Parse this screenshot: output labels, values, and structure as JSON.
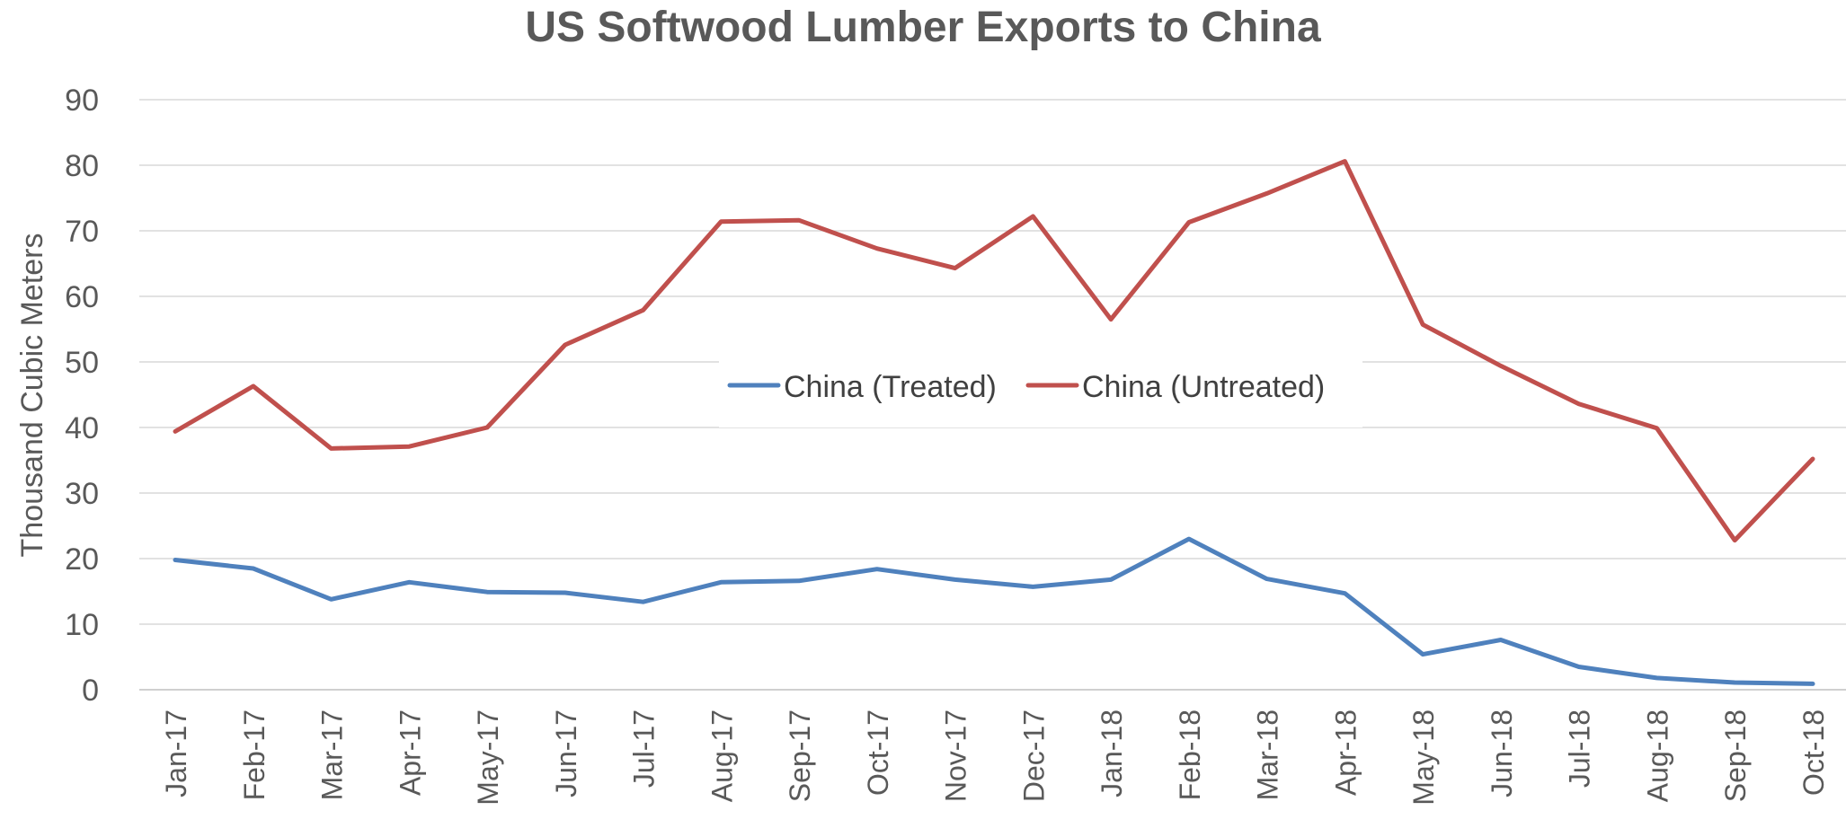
{
  "chart_data": {
    "type": "line",
    "title": "US Softwood Lumber Exports to China",
    "xlabel": "",
    "ylabel": "Thousand Cubic Meters",
    "ylim": [
      0,
      90
    ],
    "yticks": [
      0,
      10,
      20,
      30,
      40,
      50,
      60,
      70,
      80,
      90
    ],
    "grid": true,
    "legend_position": "center",
    "categories": [
      "Jan-17",
      "Feb-17",
      "Mar-17",
      "Apr-17",
      "May-17",
      "Jun-17",
      "Jul-17",
      "Aug-17",
      "Sep-17",
      "Oct-17",
      "Nov-17",
      "Dec-17",
      "Jan-18",
      "Feb-18",
      "Mar-18",
      "Apr-18",
      "May-18",
      "Jun-18",
      "Jul-18",
      "Aug-18",
      "Sep-18",
      "Oct-18"
    ],
    "series": [
      {
        "name": "China (Treated)",
        "color": "#4f81bd",
        "values": [
          19.8,
          18.5,
          13.8,
          16.4,
          14.9,
          14.8,
          13.4,
          16.4,
          16.6,
          18.4,
          16.8,
          15.7,
          16.8,
          23.0,
          16.9,
          14.7,
          5.4,
          7.6,
          3.5,
          1.8,
          1.1,
          0.9
        ]
      },
      {
        "name": "China (Untreated)",
        "color": "#c0504d",
        "values": [
          39.4,
          46.3,
          36.8,
          37.1,
          40.0,
          52.6,
          57.9,
          71.4,
          71.6,
          67.3,
          64.3,
          72.2,
          56.5,
          71.3,
          75.7,
          80.6,
          55.7,
          49.4,
          43.6,
          39.9,
          22.8,
          35.2
        ]
      }
    ]
  }
}
